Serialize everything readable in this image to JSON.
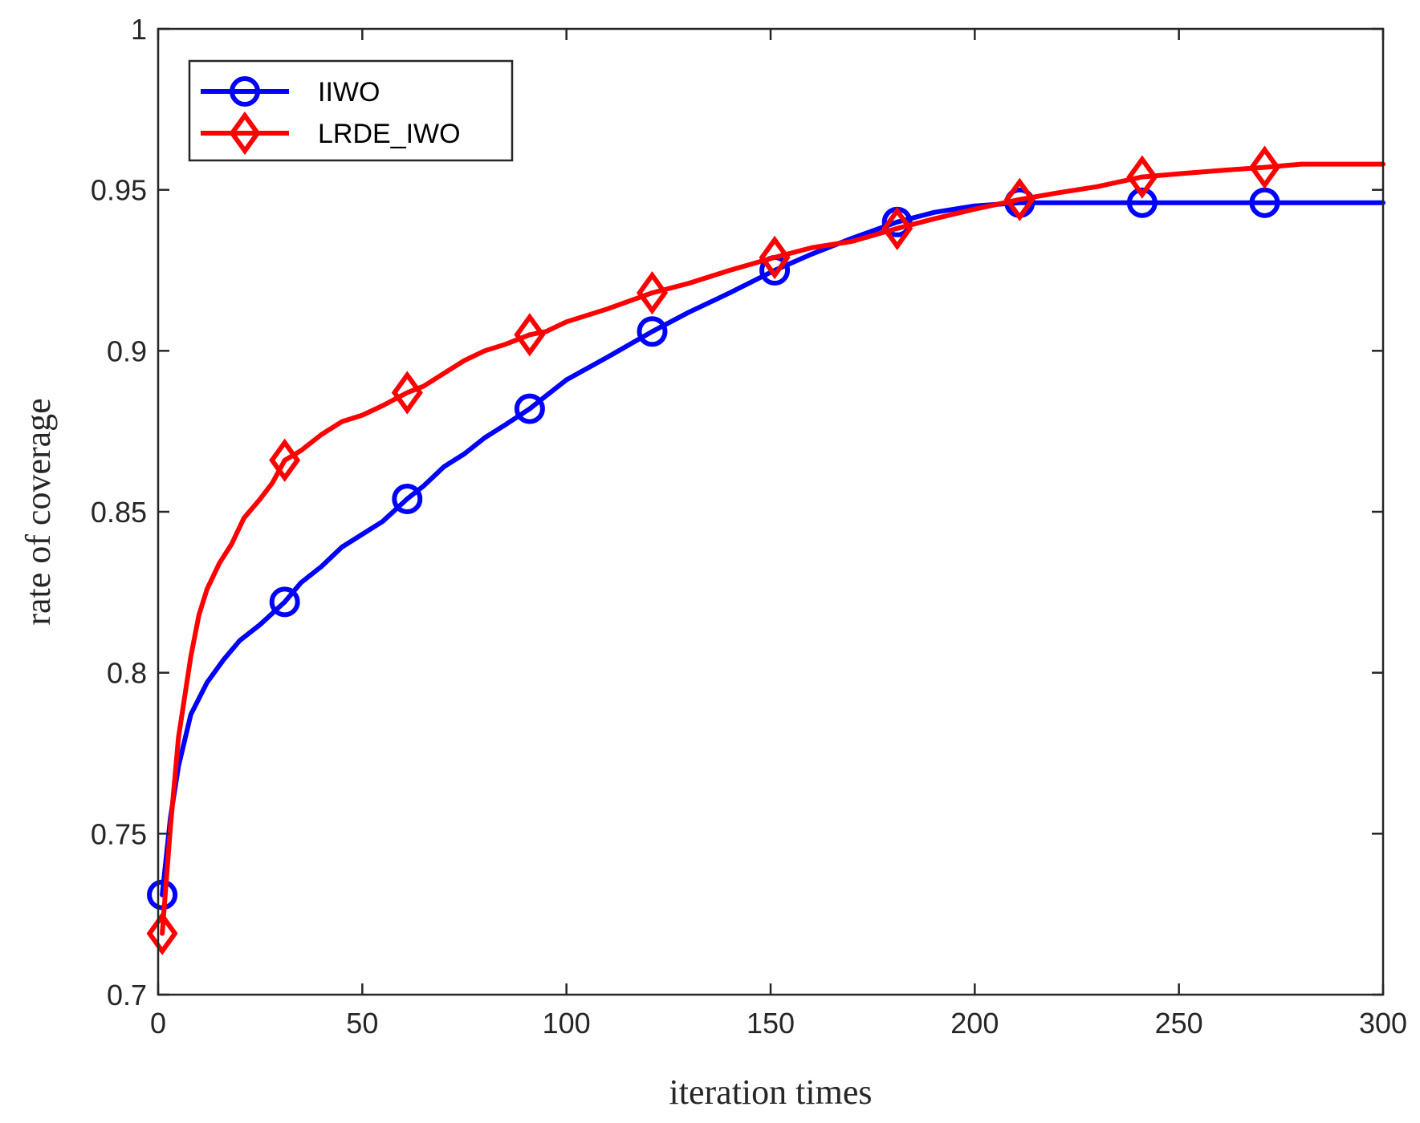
{
  "chart_data": {
    "type": "line",
    "title": "",
    "xlabel": "iteration times",
    "ylabel": "rate of coverage",
    "xlim": [
      0,
      300
    ],
    "ylim": [
      0.7,
      1.0
    ],
    "x_ticks": [
      0,
      50,
      100,
      150,
      200,
      250,
      300
    ],
    "x_tick_labels": [
      "0",
      "50",
      "100",
      "150",
      "200",
      "250",
      "300"
    ],
    "y_ticks": [
      0.7,
      0.75,
      0.8,
      0.85,
      0.9,
      0.95,
      1.0
    ],
    "y_tick_labels": [
      "0.7",
      "0.75",
      "0.8",
      "0.85",
      "0.9",
      "0.95",
      "1"
    ],
    "grid": false,
    "legend_position": "top-left",
    "series": [
      {
        "name": "IIWO",
        "color": "#0000ff",
        "marker": "circle",
        "x": [
          1,
          3,
          5,
          8,
          12,
          16,
          20,
          25,
          31,
          35,
          40,
          45,
          50,
          55,
          61,
          65,
          70,
          75,
          80,
          85,
          91,
          95,
          100,
          110,
          121,
          130,
          140,
          151,
          160,
          170,
          181,
          190,
          200,
          211,
          220,
          230,
          241,
          250,
          260,
          271,
          280,
          290,
          300
        ],
        "values": [
          0.731,
          0.755,
          0.771,
          0.787,
          0.797,
          0.804,
          0.81,
          0.815,
          0.822,
          0.828,
          0.833,
          0.839,
          0.843,
          0.847,
          0.854,
          0.858,
          0.864,
          0.868,
          0.873,
          0.877,
          0.882,
          0.886,
          0.891,
          0.898,
          0.906,
          0.912,
          0.918,
          0.925,
          0.93,
          0.935,
          0.94,
          0.943,
          0.945,
          0.946,
          0.946,
          0.946,
          0.946,
          0.946,
          0.946,
          0.946,
          0.946,
          0.946,
          0.946
        ],
        "marker_x": [
          1,
          31,
          61,
          91,
          121,
          151,
          181,
          211,
          241,
          271
        ],
        "marker_values": [
          0.731,
          0.822,
          0.854,
          0.882,
          0.906,
          0.925,
          0.94,
          0.946,
          0.946,
          0.946
        ]
      },
      {
        "name": "LRDE_IWO",
        "color": "#ff0000",
        "marker": "diamond",
        "x": [
          1,
          3,
          5,
          8,
          10,
          12,
          15,
          18,
          21,
          25,
          28,
          31,
          35,
          40,
          45,
          50,
          55,
          61,
          65,
          70,
          75,
          80,
          85,
          91,
          95,
          100,
          110,
          121,
          130,
          140,
          151,
          160,
          170,
          181,
          190,
          200,
          211,
          220,
          230,
          241,
          250,
          260,
          271,
          280,
          290,
          300
        ],
        "values": [
          0.719,
          0.752,
          0.78,
          0.805,
          0.818,
          0.826,
          0.834,
          0.84,
          0.848,
          0.854,
          0.859,
          0.866,
          0.869,
          0.874,
          0.878,
          0.88,
          0.883,
          0.887,
          0.889,
          0.893,
          0.897,
          0.9,
          0.902,
          0.905,
          0.906,
          0.909,
          0.913,
          0.918,
          0.921,
          0.925,
          0.929,
          0.932,
          0.934,
          0.938,
          0.941,
          0.944,
          0.947,
          0.949,
          0.951,
          0.954,
          0.955,
          0.956,
          0.957,
          0.958,
          0.958,
          0.958
        ],
        "marker_x": [
          1,
          31,
          61,
          91,
          121,
          151,
          181,
          211,
          241,
          271
        ],
        "marker_values": [
          0.719,
          0.866,
          0.887,
          0.905,
          0.918,
          0.929,
          0.938,
          0.947,
          0.954,
          0.957
        ]
      }
    ]
  }
}
